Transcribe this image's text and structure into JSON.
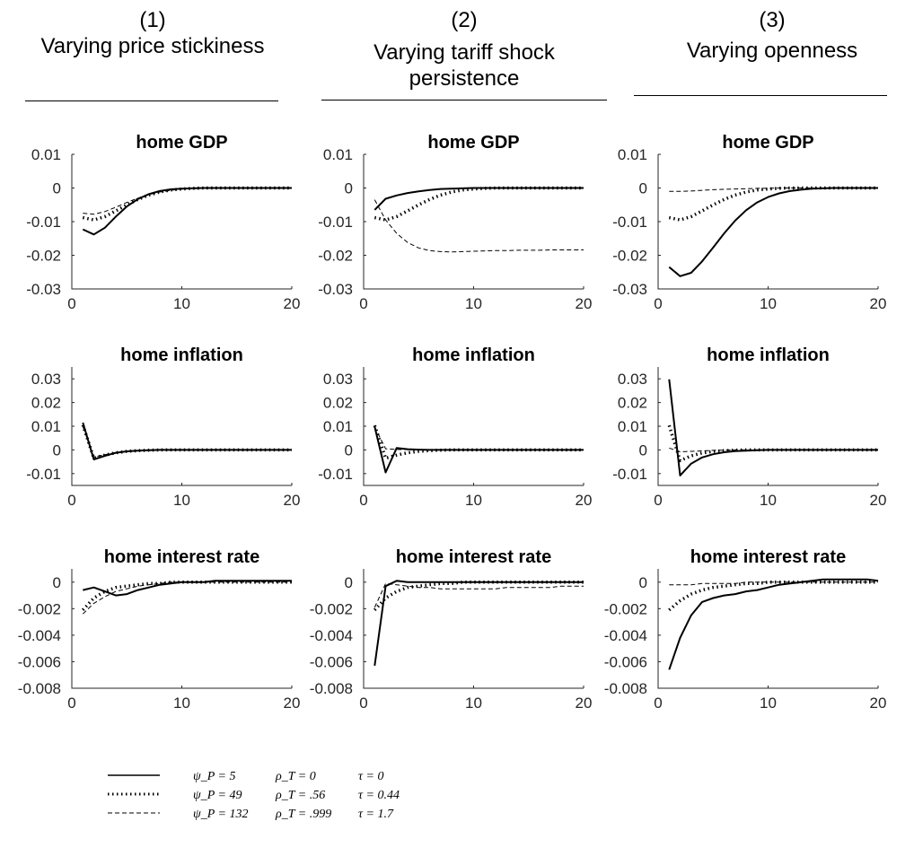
{
  "columns": [
    {
      "number": "(1)",
      "title_lines": [
        "Varying price stickiness"
      ]
    },
    {
      "number": "(2)",
      "title_lines": [
        "Varying tariff shock",
        "persistence"
      ]
    },
    {
      "number": "(3)",
      "title_lines": [
        "Varying openness"
      ]
    }
  ],
  "legend": {
    "series_styles": [
      "solid",
      "dotted",
      "dashed"
    ],
    "rows": [
      {
        "psi": "ψ_P = 5",
        "rho": "ρ_T = 0",
        "tau": "τ = 0"
      },
      {
        "psi": "ψ_P = 49",
        "rho": "ρ_T = .56",
        "tau": "τ = 0.44"
      },
      {
        "psi": "ψ_P = 132",
        "rho": "ρ_T = .999",
        "tau": "τ = 1.7"
      }
    ]
  },
  "chart_data": [
    {
      "type": "line",
      "panel": "row1-col1",
      "title": "home GDP",
      "xlim": [
        0,
        20
      ],
      "ylim": [
        -0.03,
        0.01
      ],
      "xticks": [
        "0",
        "10",
        "20"
      ],
      "yticks": [
        "0.01",
        "0",
        "-0.01",
        "-0.02",
        "-0.03"
      ],
      "ytick_values": [
        0.01,
        0,
        -0.01,
        -0.02,
        -0.03
      ],
      "x": [
        1,
        2,
        3,
        4,
        5,
        6,
        7,
        8,
        9,
        10,
        11,
        12,
        13,
        14,
        15,
        16,
        17,
        18,
        19,
        20
      ],
      "series": [
        {
          "style": "solid",
          "values": [
            -0.0123,
            -0.0138,
            -0.0118,
            -0.0085,
            -0.0055,
            -0.0033,
            -0.0018,
            -0.0009,
            -0.0004,
            -0.0002,
            -0.0001,
            0,
            0,
            0,
            0,
            0,
            0,
            0,
            0,
            0
          ]
        },
        {
          "style": "dotted",
          "values": [
            -0.0088,
            -0.0095,
            -0.0085,
            -0.0068,
            -0.005,
            -0.0034,
            -0.0021,
            -0.0012,
            -0.0006,
            -0.0003,
            -0.0001,
            0,
            0,
            0,
            0,
            0,
            0,
            0,
            0,
            0
          ]
        },
        {
          "style": "dashed",
          "values": [
            -0.0075,
            -0.0078,
            -0.007,
            -0.0057,
            -0.0043,
            -0.003,
            -0.002,
            -0.0012,
            -0.0007,
            -0.0003,
            -0.0001,
            0,
            0,
            0,
            0,
            0,
            0,
            0,
            0,
            0
          ]
        }
      ]
    },
    {
      "type": "line",
      "panel": "row1-col2",
      "title": "home GDP",
      "xlim": [
        0,
        20
      ],
      "ylim": [
        -0.03,
        0.01
      ],
      "xticks": [
        "0",
        "10",
        "20"
      ],
      "yticks": [
        "0.01",
        "0",
        "-0.01",
        "-0.02",
        "-0.03"
      ],
      "ytick_values": [
        0.01,
        0,
        -0.01,
        -0.02,
        -0.03
      ],
      "x": [
        1,
        2,
        3,
        4,
        5,
        6,
        7,
        8,
        9,
        10,
        11,
        12,
        13,
        14,
        15,
        16,
        17,
        18,
        19,
        20
      ],
      "series": [
        {
          "style": "solid",
          "values": [
            -0.0065,
            -0.0032,
            -0.0022,
            -0.0015,
            -0.001,
            -0.0006,
            -0.0003,
            -0.0002,
            -0.0001,
            0,
            0,
            0,
            0,
            0,
            0,
            0,
            0,
            0,
            0,
            0
          ]
        },
        {
          "style": "dotted",
          "values": [
            -0.0088,
            -0.0095,
            -0.0085,
            -0.0068,
            -0.005,
            -0.0034,
            -0.0021,
            -0.0012,
            -0.0006,
            -0.0003,
            -0.0001,
            0,
            0,
            0,
            0,
            0,
            0,
            0,
            0,
            0
          ]
        },
        {
          "style": "dashed",
          "values": [
            -0.0035,
            -0.0095,
            -0.0135,
            -0.0162,
            -0.0178,
            -0.0186,
            -0.0189,
            -0.019,
            -0.0189,
            -0.0188,
            -0.0187,
            -0.0186,
            -0.0186,
            -0.0185,
            -0.0185,
            -0.0185,
            -0.0184,
            -0.0184,
            -0.0184,
            -0.0184
          ]
        }
      ]
    },
    {
      "type": "line",
      "panel": "row1-col3",
      "title": "home GDP",
      "xlim": [
        0,
        20
      ],
      "ylim": [
        -0.03,
        0.01
      ],
      "xticks": [
        "0",
        "10",
        "20"
      ],
      "yticks": [
        "0.01",
        "0",
        "-0.01",
        "-0.02",
        "-0.03"
      ],
      "ytick_values": [
        0.01,
        0,
        -0.01,
        -0.02,
        -0.03
      ],
      "x": [
        1,
        2,
        3,
        4,
        5,
        6,
        7,
        8,
        9,
        10,
        11,
        12,
        13,
        14,
        15,
        16,
        17,
        18,
        19,
        20
      ],
      "series": [
        {
          "style": "solid",
          "values": [
            -0.0235,
            -0.0262,
            -0.0252,
            -0.0218,
            -0.0177,
            -0.0135,
            -0.0097,
            -0.0066,
            -0.0043,
            -0.0027,
            -0.0016,
            -0.0009,
            -0.0005,
            -0.0002,
            -0.0001,
            0,
            0,
            0,
            0,
            0
          ]
        },
        {
          "style": "dotted",
          "values": [
            -0.0088,
            -0.0095,
            -0.0085,
            -0.0068,
            -0.005,
            -0.0034,
            -0.0021,
            -0.0012,
            -0.0006,
            -0.0003,
            -0.0001,
            0,
            0,
            0,
            0,
            0,
            0,
            0,
            0,
            0
          ]
        },
        {
          "style": "dashed",
          "values": [
            -0.001,
            -0.001,
            -0.0009,
            -0.0007,
            -0.0005,
            -0.0004,
            -0.0003,
            -0.0002,
            -0.0001,
            -0.0001,
            0,
            0,
            0,
            0,
            0,
            0,
            0,
            0,
            0,
            0
          ]
        }
      ]
    },
    {
      "type": "line",
      "panel": "row2-col1",
      "title": "home inflation",
      "xlim": [
        0,
        20
      ],
      "ylim": [
        -0.015,
        0.035
      ],
      "xticks": [
        "0",
        "10",
        "20"
      ],
      "yticks": [
        "0.03",
        "0.02",
        "0.01",
        "0",
        "-0.01"
      ],
      "ytick_values": [
        0.03,
        0.02,
        0.01,
        0,
        -0.01
      ],
      "x": [
        1,
        2,
        3,
        4,
        5,
        6,
        7,
        8,
        9,
        10,
        11,
        12,
        13,
        14,
        15,
        16,
        17,
        18,
        19,
        20
      ],
      "series": [
        {
          "style": "solid",
          "values": [
            0.0115,
            -0.004,
            -0.0025,
            -0.0012,
            -0.0006,
            -0.0003,
            -0.0001,
            0,
            0,
            0,
            0,
            0,
            0,
            0,
            0,
            0,
            0,
            0,
            0,
            0
          ]
        },
        {
          "style": "dotted",
          "values": [
            0.0105,
            -0.0035,
            -0.0022,
            -0.0012,
            -0.0006,
            -0.0003,
            -0.0001,
            0,
            0,
            0,
            0,
            0,
            0,
            0,
            0,
            0,
            0,
            0,
            0,
            0
          ]
        },
        {
          "style": "dashed",
          "values": [
            0.0098,
            -0.003,
            -0.002,
            -0.0011,
            -0.0006,
            -0.0003,
            -0.0001,
            0,
            0,
            0,
            0,
            0,
            0,
            0,
            0,
            0,
            0,
            0,
            0,
            0
          ]
        }
      ]
    },
    {
      "type": "line",
      "panel": "row2-col2",
      "title": "home inflation",
      "xlim": [
        0,
        20
      ],
      "ylim": [
        -0.015,
        0.035
      ],
      "xticks": [
        "0",
        "10",
        "20"
      ],
      "yticks": [
        "0.03",
        "0.02",
        "0.01",
        "0",
        "-0.01"
      ],
      "ytick_values": [
        0.03,
        0.02,
        0.01,
        0,
        -0.01
      ],
      "x": [
        1,
        2,
        3,
        4,
        5,
        6,
        7,
        8,
        9,
        10,
        11,
        12,
        13,
        14,
        15,
        16,
        17,
        18,
        19,
        20
      ],
      "series": [
        {
          "style": "solid",
          "values": [
            0.0098,
            -0.0095,
            0.0008,
            0.0003,
            0.0001,
            0,
            0,
            0,
            0,
            0,
            0,
            0,
            0,
            0,
            0,
            0,
            0,
            0,
            0,
            0
          ]
        },
        {
          "style": "dotted",
          "values": [
            0.0103,
            -0.0035,
            -0.0022,
            -0.0012,
            -0.0006,
            -0.0003,
            -0.0001,
            0,
            0,
            0,
            0,
            0,
            0,
            0,
            0,
            0,
            0,
            0,
            0,
            0
          ]
        },
        {
          "style": "dashed",
          "values": [
            0.0097,
            0.0005,
            0.0002,
            0.0001,
            0,
            0,
            0,
            0,
            0,
            0,
            0,
            0,
            0,
            0,
            0,
            0,
            0,
            0,
            0,
            0
          ]
        }
      ]
    },
    {
      "type": "line",
      "panel": "row2-col3",
      "title": "home inflation",
      "xlim": [
        0,
        20
      ],
      "ylim": [
        -0.015,
        0.035
      ],
      "xticks": [
        "0",
        "10",
        "20"
      ],
      "yticks": [
        "0.03",
        "0.02",
        "0.01",
        "0",
        "-0.01"
      ],
      "ytick_values": [
        0.03,
        0.02,
        0.01,
        0,
        -0.01
      ],
      "x": [
        1,
        2,
        3,
        4,
        5,
        6,
        7,
        8,
        9,
        10,
        11,
        12,
        13,
        14,
        15,
        16,
        17,
        18,
        19,
        20
      ],
      "series": [
        {
          "style": "solid",
          "values": [
            0.0298,
            -0.0108,
            -0.0058,
            -0.0032,
            -0.0018,
            -0.001,
            -0.0005,
            -0.0003,
            -0.0001,
            0,
            0,
            0,
            0,
            0,
            0,
            0,
            0,
            0,
            0,
            0
          ]
        },
        {
          "style": "dotted",
          "values": [
            0.0103,
            -0.0045,
            -0.0025,
            -0.0013,
            -0.0007,
            -0.0003,
            -0.0001,
            0,
            0,
            0,
            0,
            0,
            0,
            0,
            0,
            0,
            0,
            0,
            0,
            0
          ]
        },
        {
          "style": "dashed",
          "values": [
            0.0008,
            -0.0008,
            -0.0006,
            -0.0004,
            -0.0002,
            -0.0001,
            0,
            0,
            0,
            0,
            0,
            0,
            0,
            0,
            0,
            0,
            0,
            0,
            0,
            0
          ]
        }
      ]
    },
    {
      "type": "line",
      "panel": "row3-col1",
      "title": "home interest rate",
      "xlim": [
        0,
        20
      ],
      "ylim": [
        -0.008,
        0.001
      ],
      "xticks": [
        "0",
        "10",
        "20"
      ],
      "yticks": [
        "0",
        "-0.002",
        "-0.004",
        "-0.006",
        "-0.008"
      ],
      "ytick_values": [
        0,
        -0.002,
        -0.004,
        -0.006,
        -0.008
      ],
      "x": [
        1,
        2,
        3,
        4,
        5,
        6,
        7,
        8,
        9,
        10,
        11,
        12,
        13,
        14,
        15,
        16,
        17,
        18,
        19,
        20
      ],
      "series": [
        {
          "style": "solid",
          "values": [
            -0.0006,
            -0.0004,
            -0.0007,
            -0.001,
            -0.0009,
            -0.0006,
            -0.0004,
            -0.0002,
            -0.0001,
            0,
            0,
            0,
            0.0001,
            0.0001,
            0.0001,
            0.0001,
            0.0001,
            0.0001,
            0.0001,
            0.0001
          ]
        },
        {
          "style": "dotted",
          "values": [
            -0.0021,
            -0.0012,
            -0.0007,
            -0.0004,
            -0.0003,
            -0.0002,
            -0.0001,
            -0.0001,
            0,
            0,
            0,
            0,
            0,
            0,
            0,
            0,
            0,
            0,
            0,
            0
          ]
        },
        {
          "style": "dashed",
          "values": [
            -0.0024,
            -0.0016,
            -0.0011,
            -0.0007,
            -0.0005,
            -0.0003,
            -0.0002,
            -0.0001,
            0,
            0,
            0,
            0,
            0,
            0,
            0,
            0,
            0,
            0,
            0,
            0
          ]
        }
      ]
    },
    {
      "type": "line",
      "panel": "row3-col2",
      "title": "home interest rate",
      "xlim": [
        0,
        20
      ],
      "ylim": [
        -0.008,
        0.001
      ],
      "xticks": [
        "0",
        "10",
        "20"
      ],
      "yticks": [
        "0",
        "-0.002",
        "-0.004",
        "-0.006",
        "-0.008"
      ],
      "ytick_values": [
        0,
        -0.002,
        -0.004,
        -0.006,
        -0.008
      ],
      "x": [
        1,
        2,
        3,
        4,
        5,
        6,
        7,
        8,
        9,
        10,
        11,
        12,
        13,
        14,
        15,
        16,
        17,
        18,
        19,
        20
      ],
      "series": [
        {
          "style": "solid",
          "values": [
            -0.0063,
            -0.0003,
            0.0001,
            0,
            0,
            0,
            0,
            0,
            0,
            0,
            0,
            0,
            0,
            0,
            0,
            0,
            0,
            0,
            0,
            0
          ]
        },
        {
          "style": "dotted",
          "values": [
            -0.0021,
            -0.0012,
            -0.0007,
            -0.0004,
            -0.0003,
            -0.0002,
            -0.0001,
            -0.0001,
            0,
            0,
            0,
            0,
            0,
            0,
            0,
            0,
            0,
            0,
            0,
            0
          ]
        },
        {
          "style": "dashed",
          "values": [
            -0.0019,
            -0.0001,
            -0.0002,
            -0.0003,
            -0.0004,
            -0.0004,
            -0.0005,
            -0.0005,
            -0.0005,
            -0.0005,
            -0.0005,
            -0.0005,
            -0.0004,
            -0.0004,
            -0.0004,
            -0.0004,
            -0.0004,
            -0.0003,
            -0.0003,
            -0.0003
          ]
        }
      ]
    },
    {
      "type": "line",
      "panel": "row3-col3",
      "title": "home interest rate",
      "xlim": [
        0,
        20
      ],
      "ylim": [
        -0.008,
        0.001
      ],
      "xticks": [
        "0",
        "10",
        "20"
      ],
      "yticks": [
        "0",
        "-0.002",
        "-0.004",
        "-0.006",
        "-0.008"
      ],
      "ytick_values": [
        0,
        -0.002,
        -0.004,
        -0.006,
        -0.008
      ],
      "x": [
        1,
        2,
        3,
        4,
        5,
        6,
        7,
        8,
        9,
        10,
        11,
        12,
        13,
        14,
        15,
        16,
        17,
        18,
        19,
        20
      ],
      "series": [
        {
          "style": "solid",
          "values": [
            -0.0066,
            -0.0042,
            -0.0025,
            -0.0015,
            -0.0012,
            -0.001,
            -0.0009,
            -0.0007,
            -0.0006,
            -0.0004,
            -0.0002,
            -0.0001,
            0,
            0.0001,
            0.0002,
            0.0002,
            0.0002,
            0.0002,
            0.0002,
            0.0001
          ]
        },
        {
          "style": "dotted",
          "values": [
            -0.0021,
            -0.0014,
            -0.0009,
            -0.0006,
            -0.0004,
            -0.0003,
            -0.0002,
            -0.0001,
            -0.0001,
            0,
            0,
            0,
            0,
            0,
            0,
            0,
            0,
            0,
            0,
            0
          ]
        },
        {
          "style": "dashed",
          "values": [
            -0.0002,
            -0.0002,
            -0.0002,
            -0.0001,
            -0.0001,
            -0.0001,
            -0.0001,
            0,
            0,
            0,
            0,
            0,
            0,
            0,
            0,
            0,
            0,
            0,
            0,
            0
          ]
        }
      ]
    }
  ]
}
